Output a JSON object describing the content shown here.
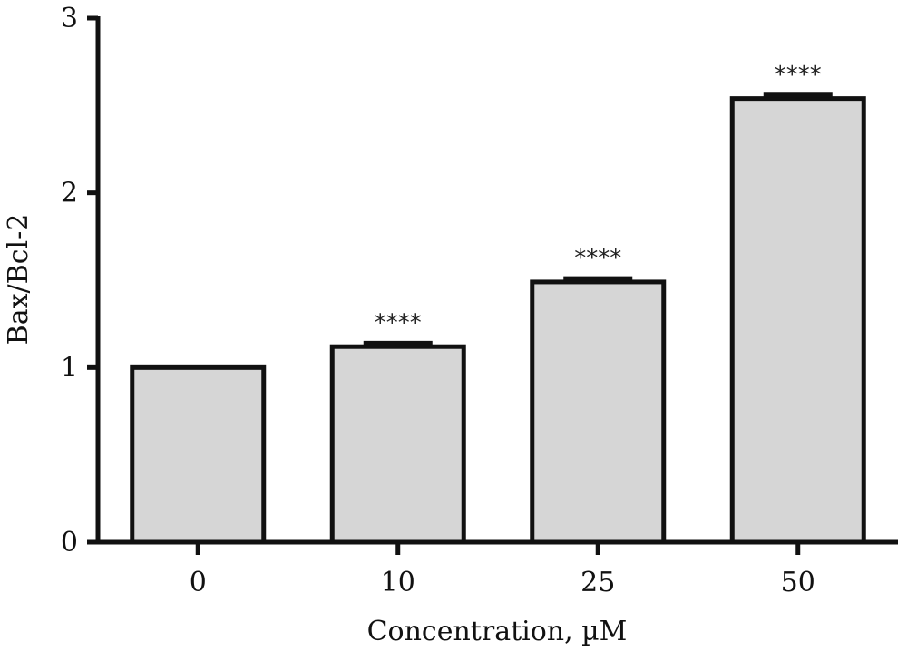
{
  "chart_data": {
    "type": "bar",
    "categories": [
      "0",
      "10",
      "25",
      "50"
    ],
    "values": [
      1.0,
      1.12,
      1.49,
      2.54
    ],
    "errors": [
      0.0,
      0.02,
      0.02,
      0.02
    ],
    "significance": [
      "",
      "****",
      "****",
      "****"
    ],
    "xlabel": "Concentration, µM",
    "ylabel": "Bax/Bcl-2",
    "ylim": [
      0,
      3
    ],
    "yticks": [
      "0",
      "1",
      "2",
      "3"
    ],
    "grid": false,
    "bar_color": "#d6d6d6",
    "edge_color": "#111111"
  }
}
